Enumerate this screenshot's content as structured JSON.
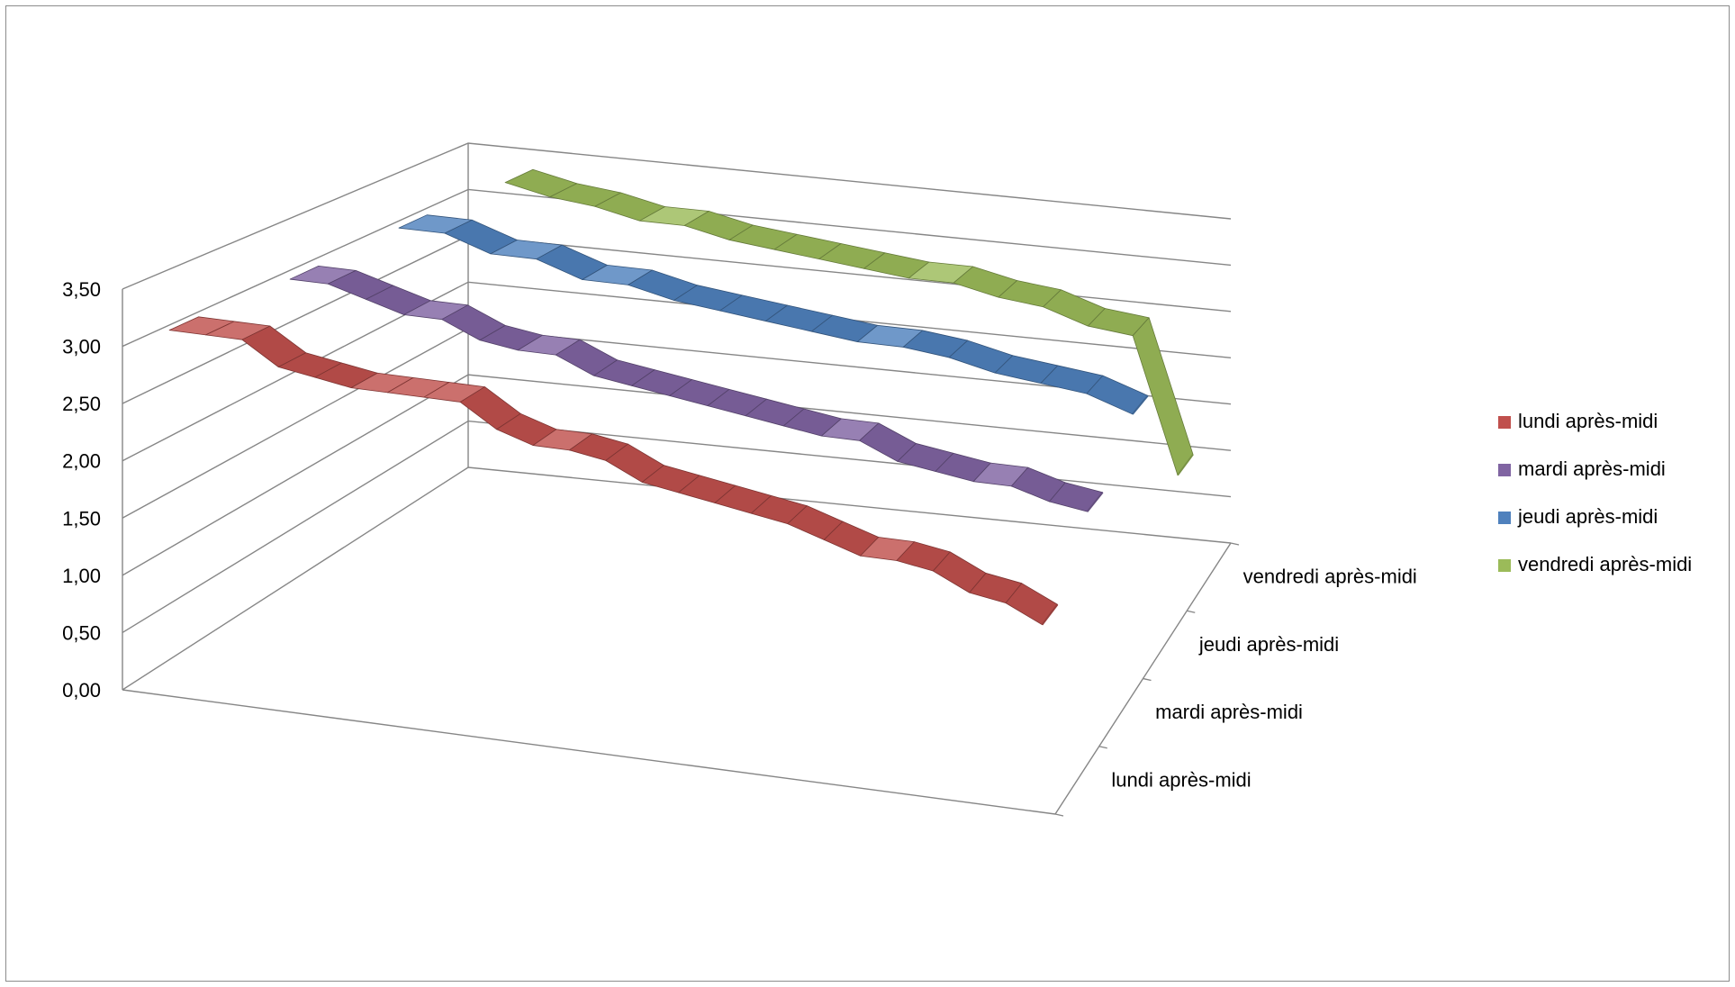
{
  "chart_data": {
    "type": "line",
    "subtype": "3d-line",
    "title": "",
    "xlabel": "",
    "ylabel": "",
    "ylim": [
      0,
      3.5
    ],
    "y_ticks": [
      "0,00",
      "0,50",
      "1,00",
      "1,50",
      "2,00",
      "2,50",
      "3,00",
      "3,50"
    ],
    "depth_categories": [
      "lundi après-midi",
      "mardi après-midi",
      "jeudi après-midi",
      "vendredi après-midi"
    ],
    "grid": true,
    "legend_position": "right",
    "series": [
      {
        "name": "lundi après-midi",
        "color": "#C0504D",
        "values": [
          3.05,
          3.05,
          3.05,
          2.85,
          2.8,
          2.75,
          2.75,
          2.75,
          2.75,
          2.55,
          2.45,
          2.45,
          2.4,
          2.25,
          2.2,
          2.15,
          2.1,
          2.05,
          1.95,
          1.85,
          1.85,
          1.8,
          1.65,
          1.6,
          1.45
        ]
      },
      {
        "name": "mardi après-midi",
        "color": "#8064A2",
        "values": [
          3.2,
          3.2,
          3.1,
          3.0,
          3.0,
          2.85,
          2.8,
          2.8,
          2.65,
          2.6,
          2.55,
          2.5,
          2.45,
          2.4,
          2.35,
          2.35,
          2.2,
          2.15,
          2.1,
          2.1,
          2.0,
          1.95
        ]
      },
      {
        "name": "jeudi après-midi",
        "color": "#4F81BD",
        "values": [
          3.35,
          3.35,
          3.2,
          3.2,
          3.05,
          3.05,
          2.95,
          2.9,
          2.85,
          2.8,
          2.75,
          2.75,
          2.7,
          2.6,
          2.55,
          2.5,
          2.35
        ]
      },
      {
        "name": "vendredi après-midi",
        "color": "#9BBB59",
        "values": [
          3.45,
          3.35,
          3.3,
          3.2,
          3.2,
          3.1,
          3.05,
          3.0,
          2.95,
          2.9,
          2.9,
          2.8,
          2.75,
          2.6,
          2.55,
          1.15
        ]
      }
    ]
  },
  "legend": {
    "items": [
      {
        "label": "lundi après-midi",
        "color": "#C0504D"
      },
      {
        "label": "mardi après-midi",
        "color": "#8064A2"
      },
      {
        "label": "jeudi après-midi",
        "color": "#4F81BD"
      },
      {
        "label": "vendredi après-midi",
        "color": "#9BBB59"
      }
    ]
  }
}
